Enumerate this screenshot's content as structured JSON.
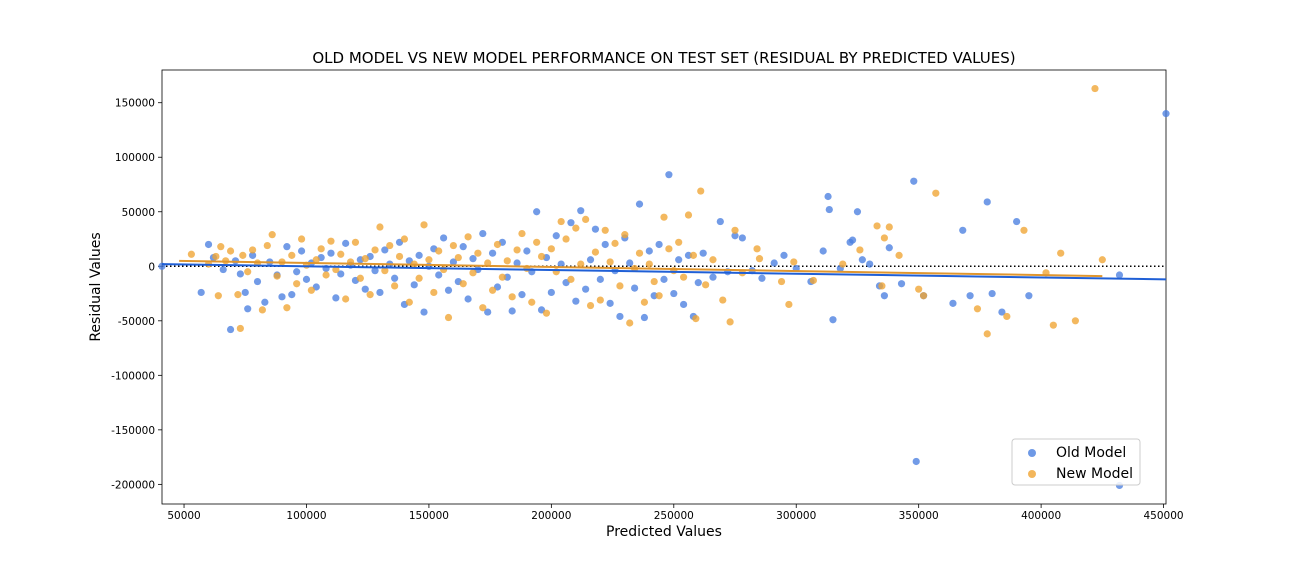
{
  "chart_data": {
    "type": "scatter",
    "title": "OLD MODEL VS NEW MODEL PERFORMANCE ON TEST SET (RESIDUAL BY PREDICTED VALUES)",
    "xlabel": "Predicted Values",
    "ylabel": "Residual Values",
    "xlim": [
      41000,
      451000
    ],
    "ylim": [
      -218000,
      180000
    ],
    "xticks": [
      50000,
      100000,
      150000,
      200000,
      250000,
      300000,
      350000,
      400000,
      450000
    ],
    "yticks": [
      -200000,
      -150000,
      -100000,
      -50000,
      0,
      50000,
      100000,
      150000
    ],
    "zero_line": true,
    "legend_position": "lower-right",
    "series": [
      {
        "name": "Old Model",
        "color": "#4a7fe0",
        "fit_line": {
          "x": [
            41000,
            451000
          ],
          "y": [
            2000,
            -12000
          ]
        },
        "points": [
          [
            41000,
            0
          ],
          [
            57000,
            -24000
          ],
          [
            60000,
            20000
          ],
          [
            62000,
            8000
          ],
          [
            66000,
            -3000
          ],
          [
            69000,
            -58000
          ],
          [
            71000,
            5000
          ],
          [
            73000,
            -7000
          ],
          [
            75000,
            -24000
          ],
          [
            76000,
            -39000
          ],
          [
            78000,
            10000
          ],
          [
            80000,
            -14000
          ],
          [
            83000,
            -33000
          ],
          [
            85000,
            4000
          ],
          [
            88000,
            -8000
          ],
          [
            90000,
            -28000
          ],
          [
            92000,
            18000
          ],
          [
            94000,
            -26000
          ],
          [
            96000,
            -5000
          ],
          [
            98000,
            14000
          ],
          [
            100000,
            -12000
          ],
          [
            102000,
            3000
          ],
          [
            104000,
            -19000
          ],
          [
            106000,
            8000
          ],
          [
            108000,
            -2000
          ],
          [
            110000,
            12000
          ],
          [
            112000,
            -29000
          ],
          [
            114000,
            -7000
          ],
          [
            116000,
            21000
          ],
          [
            118000,
            1000
          ],
          [
            120000,
            -13000
          ],
          [
            122000,
            6000
          ],
          [
            124000,
            -21000
          ],
          [
            126000,
            9000
          ],
          [
            128000,
            -4000
          ],
          [
            130000,
            -24000
          ],
          [
            132000,
            15000
          ],
          [
            134000,
            2000
          ],
          [
            136000,
            -11000
          ],
          [
            138000,
            22000
          ],
          [
            140000,
            -35000
          ],
          [
            142000,
            5000
          ],
          [
            144000,
            -17000
          ],
          [
            146000,
            10000
          ],
          [
            148000,
            -42000
          ],
          [
            150000,
            0
          ],
          [
            152000,
            16000
          ],
          [
            154000,
            -8000
          ],
          [
            156000,
            26000
          ],
          [
            158000,
            -22000
          ],
          [
            160000,
            4000
          ],
          [
            162000,
            -14000
          ],
          [
            164000,
            18000
          ],
          [
            166000,
            -30000
          ],
          [
            168000,
            7000
          ],
          [
            170000,
            -3000
          ],
          [
            172000,
            30000
          ],
          [
            174000,
            -42000
          ],
          [
            176000,
            12000
          ],
          [
            178000,
            -19000
          ],
          [
            180000,
            22000
          ],
          [
            182000,
            -10000
          ],
          [
            184000,
            -41000
          ],
          [
            186000,
            3000
          ],
          [
            188000,
            -26000
          ],
          [
            190000,
            14000
          ],
          [
            192000,
            -5000
          ],
          [
            194000,
            50000
          ],
          [
            196000,
            -40000
          ],
          [
            198000,
            8000
          ],
          [
            200000,
            -24000
          ],
          [
            202000,
            28000
          ],
          [
            204000,
            2000
          ],
          [
            206000,
            -15000
          ],
          [
            208000,
            40000
          ],
          [
            210000,
            -32000
          ],
          [
            212000,
            51000
          ],
          [
            214000,
            -21000
          ],
          [
            216000,
            6000
          ],
          [
            218000,
            34000
          ],
          [
            220000,
            -12000
          ],
          [
            222000,
            20000
          ],
          [
            224000,
            -34000
          ],
          [
            226000,
            -4000
          ],
          [
            228000,
            -46000
          ],
          [
            230000,
            26000
          ],
          [
            232000,
            3000
          ],
          [
            234000,
            -20000
          ],
          [
            236000,
            57000
          ],
          [
            238000,
            -47000
          ],
          [
            240000,
            14000
          ],
          [
            242000,
            -27000
          ],
          [
            244000,
            20000
          ],
          [
            246000,
            -12000
          ],
          [
            248000,
            84000
          ],
          [
            250000,
            -25000
          ],
          [
            252000,
            6000
          ],
          [
            254000,
            -35000
          ],
          [
            256000,
            10000
          ],
          [
            258000,
            -46000
          ],
          [
            260000,
            -15000
          ],
          [
            262000,
            12000
          ],
          [
            266000,
            -10000
          ],
          [
            269000,
            41000
          ],
          [
            272000,
            -5000
          ],
          [
            275000,
            28000
          ],
          [
            278000,
            26000
          ],
          [
            282000,
            -4000
          ],
          [
            286000,
            -11000
          ],
          [
            291000,
            3000
          ],
          [
            295000,
            10000
          ],
          [
            300000,
            -2000
          ],
          [
            306000,
            -14000
          ],
          [
            311000,
            14000
          ],
          [
            313000,
            64000
          ],
          [
            313500,
            52000
          ],
          [
            315000,
            -49000
          ],
          [
            318000,
            -2000
          ],
          [
            322000,
            22000
          ],
          [
            323000,
            24000
          ],
          [
            325000,
            50000
          ],
          [
            327000,
            6000
          ],
          [
            330000,
            2000
          ],
          [
            334000,
            -18000
          ],
          [
            336000,
            -27000
          ],
          [
            338000,
            17000
          ],
          [
            343000,
            -16000
          ],
          [
            348000,
            78000
          ],
          [
            349000,
            -179000
          ],
          [
            352000,
            -27000
          ],
          [
            364000,
            -34000
          ],
          [
            368000,
            33000
          ],
          [
            371000,
            -27000
          ],
          [
            378000,
            59000
          ],
          [
            380000,
            -25000
          ],
          [
            384000,
            -42000
          ],
          [
            390000,
            41000
          ],
          [
            395000,
            -27000
          ],
          [
            432000,
            -8000
          ],
          [
            432000,
            -201000
          ],
          [
            451000,
            140000
          ]
        ]
      },
      {
        "name": "New Model",
        "color": "#f0a432",
        "fit_line": {
          "x": [
            48000,
            425000
          ],
          "y": [
            5000,
            -9000
          ]
        },
        "points": [
          [
            53000,
            11000
          ],
          [
            60000,
            2000
          ],
          [
            63000,
            9000
          ],
          [
            64000,
            -27000
          ],
          [
            65000,
            18000
          ],
          [
            67000,
            5000
          ],
          [
            69000,
            14000
          ],
          [
            72000,
            -26000
          ],
          [
            73000,
            -57000
          ],
          [
            74000,
            10000
          ],
          [
            76000,
            -5000
          ],
          [
            78000,
            15000
          ],
          [
            80000,
            3000
          ],
          [
            82000,
            -40000
          ],
          [
            84000,
            19000
          ],
          [
            86000,
            29000
          ],
          [
            88000,
            -9000
          ],
          [
            90000,
            4000
          ],
          [
            92000,
            -38000
          ],
          [
            94000,
            10000
          ],
          [
            96000,
            -16000
          ],
          [
            98000,
            25000
          ],
          [
            100000,
            1000
          ],
          [
            102000,
            -22000
          ],
          [
            104000,
            6000
          ],
          [
            106000,
            16000
          ],
          [
            108000,
            -8000
          ],
          [
            110000,
            23000
          ],
          [
            112000,
            -3000
          ],
          [
            114000,
            11000
          ],
          [
            116000,
            -30000
          ],
          [
            118000,
            4000
          ],
          [
            120000,
            22000
          ],
          [
            122000,
            -11000
          ],
          [
            124000,
            7000
          ],
          [
            126000,
            -26000
          ],
          [
            128000,
            15000
          ],
          [
            130000,
            36000
          ],
          [
            132000,
            -4000
          ],
          [
            134000,
            19000
          ],
          [
            136000,
            -18000
          ],
          [
            138000,
            9000
          ],
          [
            140000,
            25000
          ],
          [
            142000,
            -33000
          ],
          [
            144000,
            2000
          ],
          [
            146000,
            -11000
          ],
          [
            148000,
            38000
          ],
          [
            150000,
            6000
          ],
          [
            152000,
            -24000
          ],
          [
            154000,
            14000
          ],
          [
            156000,
            -3000
          ],
          [
            158000,
            -47000
          ],
          [
            160000,
            19000
          ],
          [
            162000,
            8000
          ],
          [
            164000,
            -16000
          ],
          [
            166000,
            27000
          ],
          [
            168000,
            -6000
          ],
          [
            170000,
            12000
          ],
          [
            172000,
            -38000
          ],
          [
            174000,
            3000
          ],
          [
            176000,
            -22000
          ],
          [
            178000,
            20000
          ],
          [
            180000,
            -10000
          ],
          [
            182000,
            5000
          ],
          [
            184000,
            -28000
          ],
          [
            186000,
            15000
          ],
          [
            188000,
            30000
          ],
          [
            190000,
            -2000
          ],
          [
            192000,
            -33000
          ],
          [
            194000,
            22000
          ],
          [
            196000,
            9000
          ],
          [
            198000,
            -43000
          ],
          [
            200000,
            16000
          ],
          [
            202000,
            -5000
          ],
          [
            204000,
            41000
          ],
          [
            206000,
            25000
          ],
          [
            208000,
            -12000
          ],
          [
            210000,
            35000
          ],
          [
            212000,
            2000
          ],
          [
            214000,
            43000
          ],
          [
            216000,
            -36000
          ],
          [
            218000,
            13000
          ],
          [
            220000,
            -31000
          ],
          [
            222000,
            33000
          ],
          [
            224000,
            4000
          ],
          [
            226000,
            21000
          ],
          [
            228000,
            -18000
          ],
          [
            230000,
            29000
          ],
          [
            232000,
            -52000
          ],
          [
            234000,
            -2000
          ],
          [
            236000,
            12000
          ],
          [
            238000,
            -33000
          ],
          [
            240000,
            2000
          ],
          [
            242000,
            -14000
          ],
          [
            244000,
            -27000
          ],
          [
            246000,
            45000
          ],
          [
            248000,
            16000
          ],
          [
            250000,
            -4000
          ],
          [
            252000,
            22000
          ],
          [
            254000,
            -10000
          ],
          [
            256000,
            47000
          ],
          [
            258000,
            10000
          ],
          [
            259000,
            -48000
          ],
          [
            261000,
            69000
          ],
          [
            263000,
            -17000
          ],
          [
            266000,
            6000
          ],
          [
            270000,
            -31000
          ],
          [
            273000,
            -51000
          ],
          [
            275000,
            33000
          ],
          [
            278000,
            -6000
          ],
          [
            284000,
            16000
          ],
          [
            285000,
            7000
          ],
          [
            294000,
            -14000
          ],
          [
            297000,
            -35000
          ],
          [
            299000,
            4000
          ],
          [
            307000,
            -13000
          ],
          [
            319000,
            2000
          ],
          [
            326000,
            15000
          ],
          [
            333000,
            37000
          ],
          [
            335000,
            -18000
          ],
          [
            336000,
            26000
          ],
          [
            338000,
            36000
          ],
          [
            342000,
            10000
          ],
          [
            350000,
            -21000
          ],
          [
            352000,
            -27000
          ],
          [
            357000,
            67000
          ],
          [
            374000,
            -39000
          ],
          [
            378000,
            -62000
          ],
          [
            386000,
            -46000
          ],
          [
            393000,
            33000
          ],
          [
            402000,
            -6000
          ],
          [
            405000,
            -54000
          ],
          [
            408000,
            12000
          ],
          [
            414000,
            -50000
          ],
          [
            422000,
            163000
          ],
          [
            425000,
            6000
          ]
        ]
      }
    ]
  }
}
